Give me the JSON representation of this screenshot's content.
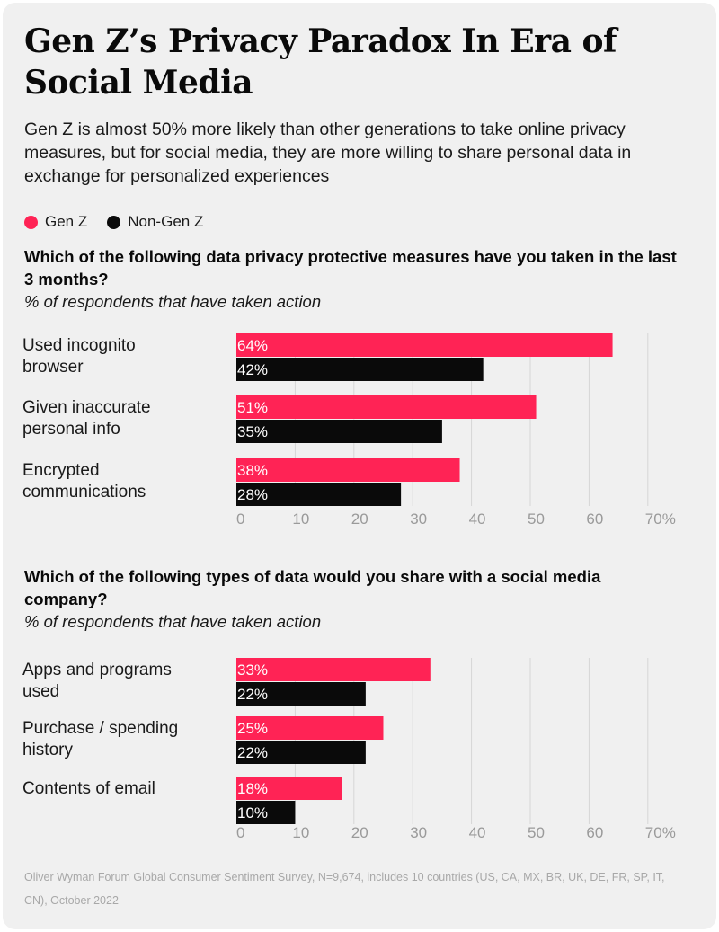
{
  "title": "Gen Z’s Privacy Paradox In Era of Social Media",
  "subtitle": "Gen Z is almost 50% more likely than other generations to take online privacy measures, but for social media, they are more willing to share personal data in exchange for personalized experiences",
  "legend": [
    {
      "label": "Gen Z",
      "color": "#ff2355"
    },
    {
      "label": "Non-Gen Z",
      "color": "#0a0a0a"
    }
  ],
  "questions": [
    {
      "title": "Which of the following data privacy protective measures have you taken in the last 3 months?",
      "subtitle": "% of respondents that have taken action"
    },
    {
      "title": "Which of the following types of data would you share with a social media company?",
      "subtitle": "% of respondents that have taken action"
    }
  ],
  "chart_data": [
    {
      "type": "bar",
      "orientation": "horizontal",
      "categories": [
        [
          "Used incognito",
          "browser"
        ],
        [
          "Given inaccurate",
          "personal info"
        ],
        [
          "Encrypted",
          "communications"
        ]
      ],
      "series": [
        {
          "name": "Gen Z",
          "color": "#ff2355",
          "values": [
            64,
            51,
            38
          ],
          "labels": [
            "64%",
            "51%",
            "38%"
          ]
        },
        {
          "name": "Non-Gen Z",
          "color": "#0a0a0a",
          "values": [
            42,
            35,
            28
          ],
          "labels": [
            "42%",
            "35%",
            "28%"
          ]
        }
      ],
      "xlim": [
        0,
        70
      ],
      "ticks": [
        "0",
        "10",
        "20",
        "30",
        "40",
        "50",
        "60",
        "70%"
      ],
      "grid": true
    },
    {
      "type": "bar",
      "orientation": "horizontal",
      "categories": [
        [
          "Apps and programs",
          "used"
        ],
        [
          "Purchase / spending",
          "history"
        ],
        [
          "Contents of email"
        ]
      ],
      "series": [
        {
          "name": "Gen Z",
          "color": "#ff2355",
          "values": [
            33,
            25,
            18
          ],
          "labels": [
            "33%",
            "25%",
            "18%"
          ]
        },
        {
          "name": "Non-Gen Z",
          "color": "#0a0a0a",
          "values": [
            22,
            22,
            10
          ],
          "labels": [
            "22%",
            "22%",
            "10%"
          ]
        }
      ],
      "xlim": [
        0,
        70
      ],
      "ticks": [
        "0",
        "10",
        "20",
        "30",
        "40",
        "50",
        "60",
        "70%"
      ],
      "grid": true
    }
  ],
  "footnote": "Oliver Wyman Forum Global Consumer Sentiment Survey, N=9,674, includes 10 countries (US, CA, MX, BR, UK, DE, FR, SP, IT, CN), October 2022"
}
